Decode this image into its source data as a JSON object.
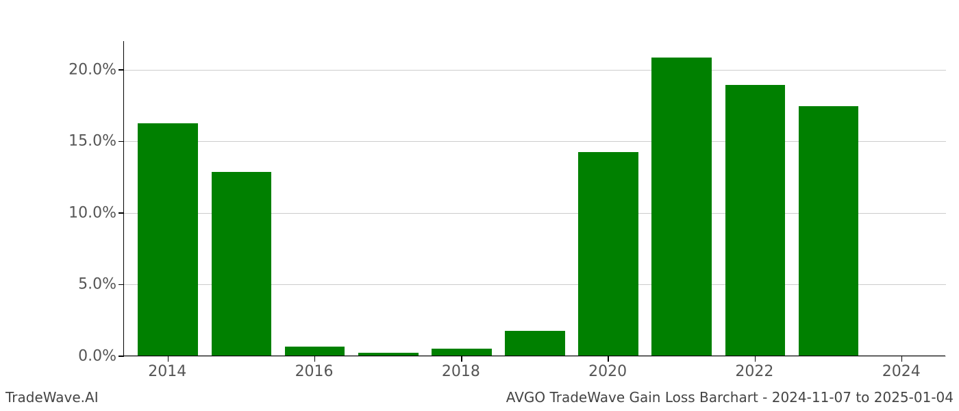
{
  "chart": {
    "type": "bar",
    "years": [
      2014,
      2015,
      2016,
      2017,
      2018,
      2019,
      2020,
      2021,
      2022,
      2023,
      2024
    ],
    "values": [
      16.2,
      12.8,
      0.6,
      0.2,
      0.5,
      1.7,
      14.2,
      20.8,
      18.9,
      17.4,
      0.0
    ],
    "bar_color": "#008000",
    "background_color": "#ffffff",
    "grid_color": "#cccccc",
    "axis_color": "#000000",
    "ylim": [
      0,
      22
    ],
    "yticks": [
      0.0,
      5.0,
      10.0,
      15.0,
      20.0
    ],
    "ytick_labels": [
      "0.0%",
      "5.0%",
      "10.0%",
      "15.0%",
      "20.0%"
    ],
    "xticks": [
      2014,
      2016,
      2018,
      2020,
      2022,
      2024
    ],
    "xtick_labels": [
      "2014",
      "2016",
      "2018",
      "2020",
      "2022",
      "2024"
    ],
    "x_domain": [
      2013.4,
      2024.6
    ],
    "bar_width_years": 0.82,
    "tick_label_fontsize": 22,
    "tick_label_color": "#555555",
    "footer_fontsize": 20,
    "footer_color": "#444444"
  },
  "footer": {
    "left": "TradeWave.AI",
    "right": "AVGO TradeWave Gain Loss Barchart - 2024-11-07 to 2025-01-04"
  }
}
